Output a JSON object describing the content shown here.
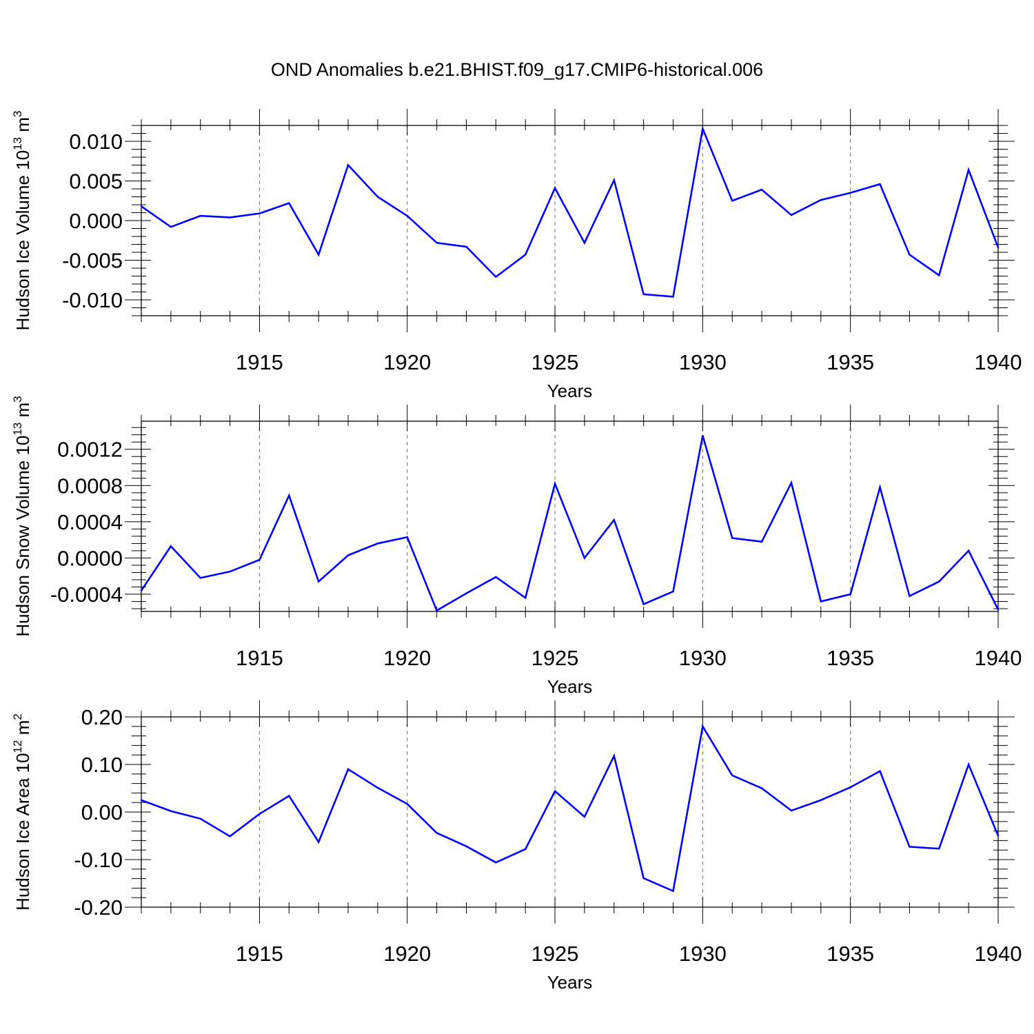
{
  "figure": {
    "title": "OND Anomalies b.e21.BHIST.f09_g17.CMIP6-historical.006"
  },
  "chart_data": [
    {
      "type": "line",
      "ylabel": "Hudson Ice Volume 10",
      "ylabel_exp": "13",
      "ylabel_unit": " m",
      "ylabel_unit_exp": "3",
      "xlabel": "Years",
      "xlim": [
        1911,
        1940
      ],
      "ylim": [
        -0.012,
        0.012
      ],
      "yticks": [
        -0.01,
        -0.005,
        0.0,
        0.005,
        0.01
      ],
      "ytick_labels": [
        "-0.010",
        "-0.005",
        "0.000",
        "0.005",
        "0.010"
      ],
      "xticks": [
        1915,
        1920,
        1925,
        1930,
        1935,
        1940
      ],
      "xtick_labels": [
        "1915",
        "1920",
        "1925",
        "1930",
        "1935",
        "1940"
      ],
      "line_color": "#0000ff",
      "x": [
        1911,
        1912,
        1913,
        1914,
        1915,
        1916,
        1917,
        1918,
        1919,
        1920,
        1921,
        1922,
        1923,
        1924,
        1925,
        1926,
        1927,
        1928,
        1929,
        1930,
        1931,
        1932,
        1933,
        1934,
        1935,
        1936,
        1937,
        1938,
        1939,
        1940
      ],
      "values": [
        0.0018,
        -0.0008,
        0.0006,
        0.0004,
        0.0009,
        0.0022,
        -0.0043,
        0.007,
        0.003,
        0.0006,
        -0.0028,
        -0.0033,
        -0.0071,
        -0.0043,
        0.0041,
        -0.0028,
        0.0051,
        -0.0093,
        -0.0096,
        0.0116,
        0.0025,
        0.0039,
        0.0007,
        0.0026,
        0.0035,
        0.0046,
        -0.0043,
        -0.0069,
        0.0064,
        -0.0034
      ]
    },
    {
      "type": "line",
      "ylabel": "Hudson Snow Volume 10",
      "ylabel_exp": "13",
      "ylabel_unit": " m",
      "ylabel_unit_exp": "3",
      "xlabel": "Years",
      "xlim": [
        1911,
        1940
      ],
      "ylim": [
        -0.00059,
        0.00151
      ],
      "yticks": [
        -0.0004,
        0.0,
        0.0004,
        0.0008,
        0.0012
      ],
      "ytick_labels": [
        "-0.0004",
        "0.0000",
        "0.0004",
        "0.0008",
        "0.0012"
      ],
      "xticks": [
        1915,
        1920,
        1925,
        1930,
        1935,
        1940
      ],
      "xtick_labels": [
        "1915",
        "1920",
        "1925",
        "1930",
        "1935",
        "1940"
      ],
      "line_color": "#0000ff",
      "x": [
        1911,
        1912,
        1913,
        1914,
        1915,
        1916,
        1917,
        1918,
        1919,
        1920,
        1921,
        1922,
        1923,
        1924,
        1925,
        1926,
        1927,
        1928,
        1929,
        1930,
        1931,
        1932,
        1933,
        1934,
        1935,
        1936,
        1937,
        1938,
        1939,
        1940
      ],
      "values": [
        -0.00036,
        0.00013,
        -0.00022,
        -0.00015,
        -2e-05,
        0.00069,
        -0.00026,
        3e-05,
        0.00016,
        0.00023,
        -0.00058,
        -0.00039,
        -0.00021,
        -0.00044,
        0.00082,
        0.0,
        0.00042,
        -0.00051,
        -0.00037,
        0.00135,
        0.00022,
        0.00018,
        0.00083,
        -0.00048,
        -0.0004,
        0.00078,
        -0.00042,
        -0.00026,
        8e-05,
        -0.00057
      ]
    },
    {
      "type": "line",
      "ylabel": "Hudson Ice Area 10",
      "ylabel_exp": "12",
      "ylabel_unit": " m",
      "ylabel_unit_exp": "2",
      "xlabel": "Years",
      "xlim": [
        1911,
        1940
      ],
      "ylim": [
        -0.2,
        0.2
      ],
      "yticks": [
        -0.2,
        -0.1,
        0.0,
        0.1,
        0.2
      ],
      "ytick_labels": [
        "-0.20",
        "-0.10",
        "0.00",
        "0.10",
        "0.20"
      ],
      "xticks": [
        1915,
        1920,
        1925,
        1930,
        1935,
        1940
      ],
      "xtick_labels": [
        "1915",
        "1920",
        "1925",
        "1930",
        "1935",
        "1940"
      ],
      "line_color": "#0000ff",
      "x": [
        1911,
        1912,
        1913,
        1914,
        1915,
        1916,
        1917,
        1918,
        1919,
        1920,
        1921,
        1922,
        1923,
        1924,
        1925,
        1926,
        1927,
        1928,
        1929,
        1930,
        1931,
        1932,
        1933,
        1934,
        1935,
        1936,
        1937,
        1938,
        1939,
        1940
      ],
      "values": [
        0.025,
        0.002,
        -0.014,
        -0.051,
        -0.004,
        0.034,
        -0.063,
        0.09,
        0.051,
        0.017,
        -0.044,
        -0.072,
        -0.106,
        -0.078,
        0.044,
        -0.01,
        0.118,
        -0.139,
        -0.166,
        0.18,
        0.077,
        0.05,
        0.003,
        0.025,
        0.052,
        0.086,
        -0.073,
        -0.077,
        0.1,
        -0.05
      ]
    }
  ]
}
